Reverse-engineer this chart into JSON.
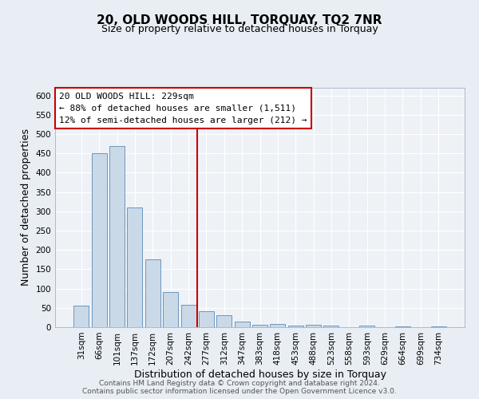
{
  "title": "20, OLD WOODS HILL, TORQUAY, TQ2 7NR",
  "subtitle": "Size of property relative to detached houses in Torquay",
  "xlabel": "Distribution of detached houses by size in Torquay",
  "ylabel": "Number of detached properties",
  "bar_labels": [
    "31sqm",
    "66sqm",
    "101sqm",
    "137sqm",
    "172sqm",
    "207sqm",
    "242sqm",
    "277sqm",
    "312sqm",
    "347sqm",
    "383sqm",
    "418sqm",
    "453sqm",
    "488sqm",
    "523sqm",
    "558sqm",
    "593sqm",
    "629sqm",
    "664sqm",
    "699sqm",
    "734sqm"
  ],
  "bar_values": [
    55,
    450,
    470,
    310,
    175,
    90,
    58,
    42,
    30,
    15,
    7,
    8,
    5,
    7,
    5,
    0,
    5,
    0,
    2,
    0,
    2
  ],
  "bar_color": "#c9d9e8",
  "bar_edgecolor": "#5a8ab5",
  "vline_x": 6.5,
  "vline_color": "#cc0000",
  "annotation_text": "20 OLD WOODS HILL: 229sqm\n← 88% of detached houses are smaller (1,511)\n12% of semi-detached houses are larger (212) →",
  "annotation_box_color": "#ffffff",
  "annotation_border_color": "#cc0000",
  "ylim": [
    0,
    620
  ],
  "yticks": [
    0,
    50,
    100,
    150,
    200,
    250,
    300,
    350,
    400,
    450,
    500,
    550,
    600
  ],
  "footer_line1": "Contains HM Land Registry data © Crown copyright and database right 2024.",
  "footer_line2": "Contains public sector information licensed under the Open Government Licence v3.0.",
  "bg_color": "#e8eef4",
  "plot_bg_color": "#eef2f7",
  "grid_color": "#ffffff",
  "title_fontsize": 11,
  "subtitle_fontsize": 9,
  "axis_label_fontsize": 9,
  "tick_fontsize": 7.5,
  "annotation_fontsize": 8,
  "footer_fontsize": 6.5
}
